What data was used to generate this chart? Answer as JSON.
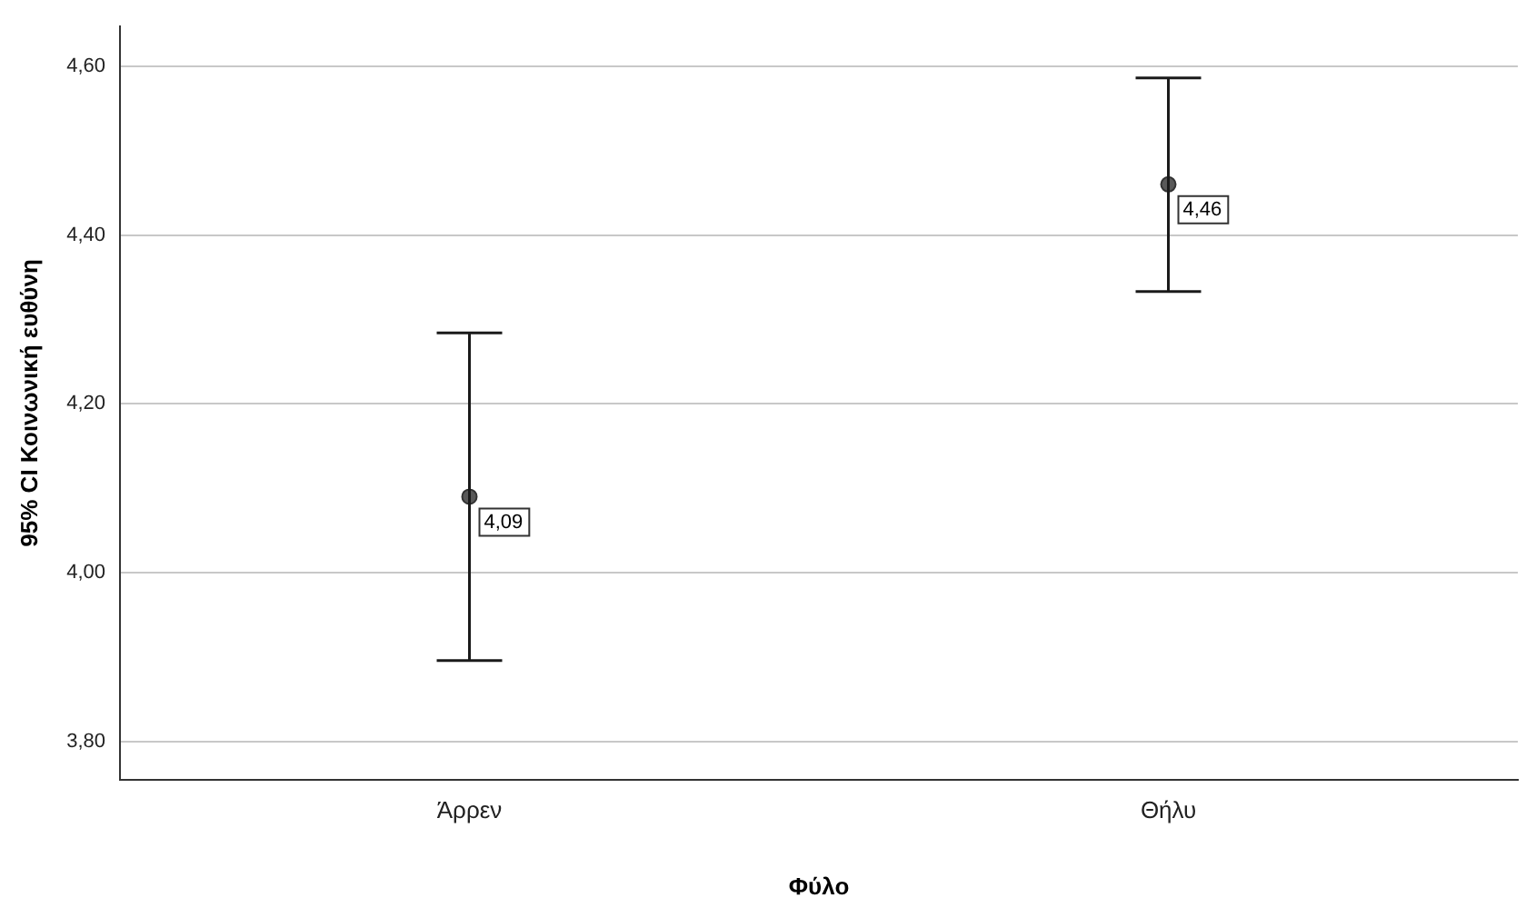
{
  "chart_data": {
    "type": "scatter",
    "xlabel": "Φύλο",
    "ylabel": "95% CI Κοινωνική ευθύνη",
    "categories": [
      "Άρρεν",
      "Θήλυ"
    ],
    "values": [
      4.09,
      4.46
    ],
    "errors": [
      [
        3.896,
        4.284
      ],
      [
        4.333,
        4.586
      ]
    ],
    "value_labels": [
      "4,09",
      "4,46"
    ],
    "color": "#595959",
    "marker": "circle",
    "grid": "y",
    "legend": false,
    "ylim": [
      3.755,
      4.647
    ],
    "yticks": [
      {
        "value": 3.8,
        "label": "3,80"
      },
      {
        "value": 4.0,
        "label": "4,00"
      },
      {
        "value": 4.2,
        "label": "4,20"
      },
      {
        "value": 4.4,
        "label": "4,40"
      },
      {
        "value": 4.6,
        "label": "4,60"
      }
    ]
  }
}
